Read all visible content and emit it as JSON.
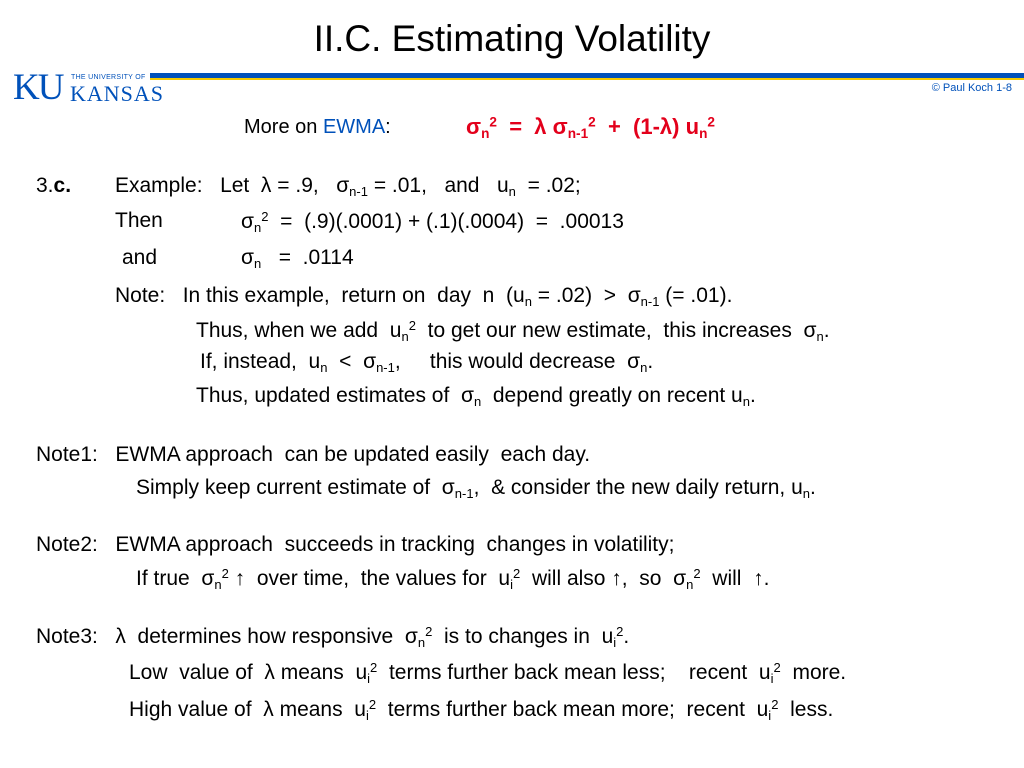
{
  "header": {
    "title": "II.C.  Estimating Volatility",
    "logo_ku": "KU",
    "logo_university": "THE UNIVERSITY OF",
    "logo_kansas": "KANSAS",
    "copyright": "© Paul Koch 1-8"
  },
  "colors": {
    "brand_blue": "#0051ba",
    "accent_red": "#e3001b",
    "accent_yellow": "#f2c900"
  },
  "subtitle": {
    "prefix": "More on ",
    "ewma": "EWMA",
    "colon": ":",
    "sigma": "σ",
    "n": "n",
    "two": "2",
    "eq": "  =  ",
    "lambda": "λ",
    "n1": "n-1",
    "plus": "  +  ",
    "paren": "(1-",
    "lambda2": "λ",
    "close": ")",
    "u": "u"
  },
  "example": {
    "num": "3.",
    "letter": "c.",
    "l1_label": "Example:",
    "l1_a": "Let  λ = .9,   σ",
    "l1_sub1": "n-1",
    "l1_b": " = .01,   and   u",
    "l1_sub2": "n",
    "l1_c": "  = .02;",
    "l2_label": "Then",
    "l2_a": "σ",
    "l2_sub": "n",
    "l2_sup": "2",
    "l2_b": "  =  (.9)(.0001) + (.1)(.0004)  =  .00013",
    "l3_label": "and",
    "l3_a": "σ",
    "l3_sub": "n",
    "l3_b": "   =  .0114",
    "l4_a": "Note:   In this example,  return on  day  n  (u",
    "l4_sub1": "n",
    "l4_b": " = .02)  >  σ",
    "l4_sub2": "n-1",
    "l4_c": " (= .01).",
    "l5_a": "Thus, when we add  u",
    "l5_sub": "n",
    "l5_sup": "2",
    "l5_b": "  to get our new estimate,  this increases  σ",
    "l5_sub2": "n",
    "l5_c": ".",
    "l6_a": "If, instead,  u",
    "l6_sub1": "n",
    "l6_b": "  <  σ",
    "l6_sub2": "n-1",
    "l6_c": ",     this would decrease  σ",
    "l6_sub3": "n",
    "l6_d": ".",
    "l7_a": "Thus, updated estimates of  σ",
    "l7_sub": "n",
    "l7_b": "  depend greatly on recent u",
    "l7_sub2": "n",
    "l7_c": "."
  },
  "note1": {
    "l1": "Note1:   EWMA approach  can be updated easily  each day.",
    "l2_a": "Simply keep current estimate of  σ",
    "l2_sub": "n-1",
    "l2_b": ",  & consider the new daily return, u",
    "l2_sub2": "n",
    "l2_c": "."
  },
  "note2": {
    "l1": "Note2:   EWMA approach  succeeds in tracking  changes in volatility;",
    "l2_a": "If true  σ",
    "l2_sub": "n",
    "l2_sup": "2",
    "l2_b": " ↑  over time,  the values for  u",
    "l2_sub2": "i",
    "l2_sup2": "2",
    "l2_c": "  will also ↑,  so  σ",
    "l2_sub3": "n",
    "l2_sup3": "2",
    "l2_d": "  will  ↑."
  },
  "note3": {
    "l1_a": "Note3:   λ  determines how responsive  σ",
    "l1_sub": "n",
    "l1_sup": "2",
    "l1_b": "  is to changes in  u",
    "l1_sub2": "i",
    "l1_sup2": "2",
    "l1_c": ".",
    "l2_a": "Low  value of  λ means  u",
    "l2_sub": "i",
    "l2_sup": "2",
    "l2_b": "  terms further back mean less;    recent  u",
    "l2_sub2": "i",
    "l2_sup2": "2",
    "l2_c": "  more.",
    "l3_a": "High value of  λ means  u",
    "l3_sub": "i",
    "l3_sup": "2",
    "l3_b": "  terms further back mean more;  recent  u",
    "l3_sub2": "i",
    "l3_sup2": "2",
    "l3_c": "  less."
  }
}
